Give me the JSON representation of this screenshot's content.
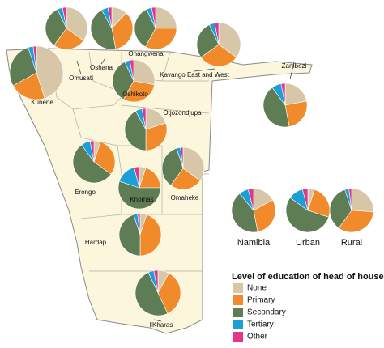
{
  "legend": {
    "title": "Level of education of head of household",
    "items": [
      {
        "label": "None",
        "color": "#d8c6a8"
      },
      {
        "label": "Primary",
        "color": "#f08a2a"
      },
      {
        "label": "Secondary",
        "color": "#5e7d54"
      },
      {
        "label": "Tertiary",
        "color": "#1a9fd8"
      },
      {
        "label": "Other",
        "color": "#e0378b"
      }
    ]
  },
  "regions": [
    {
      "name": "Omusati",
      "values": [
        35,
        25,
        33,
        4,
        3
      ]
    },
    {
      "name": "Oshana",
      "values": [
        12,
        35,
        45,
        5,
        3
      ]
    },
    {
      "name": "Ohangwena",
      "values": [
        25,
        33,
        35,
        4,
        3
      ]
    },
    {
      "name": "Kavango East and West",
      "values": [
        35,
        30,
        28,
        4,
        3
      ]
    },
    {
      "name": "Kunene",
      "values": [
        45,
        22,
        28,
        3,
        2
      ]
    },
    {
      "name": "Oshikoto",
      "values": [
        28,
        30,
        35,
        4,
        3
      ]
    },
    {
      "name": "Zambezi",
      "values": [
        22,
        25,
        43,
        7,
        3
      ]
    },
    {
      "name": "Otjozondjupa",
      "values": [
        20,
        30,
        42,
        5,
        3
      ]
    },
    {
      "name": "Erongo",
      "values": [
        5,
        30,
        55,
        7,
        3
      ]
    },
    {
      "name": "Omaheke",
      "values": [
        35,
        25,
        35,
        3,
        2
      ]
    },
    {
      "name": "Khomas",
      "values": [
        5,
        20,
        55,
        16,
        4
      ]
    },
    {
      "name": "Hardap",
      "values": [
        5,
        45,
        45,
        3,
        2
      ]
    },
    {
      "name": "ǁKharas",
      "values": [
        8,
        35,
        50,
        4,
        3
      ]
    }
  ],
  "summary": [
    {
      "name": "Namibia",
      "values": [
        17,
        30,
        42,
        7,
        4
      ]
    },
    {
      "name": "Urban",
      "values": [
        5,
        25,
        55,
        11,
        4
      ]
    },
    {
      "name": "Rural",
      "values": [
        26,
        34,
        35,
        3,
        2
      ]
    }
  ]
}
